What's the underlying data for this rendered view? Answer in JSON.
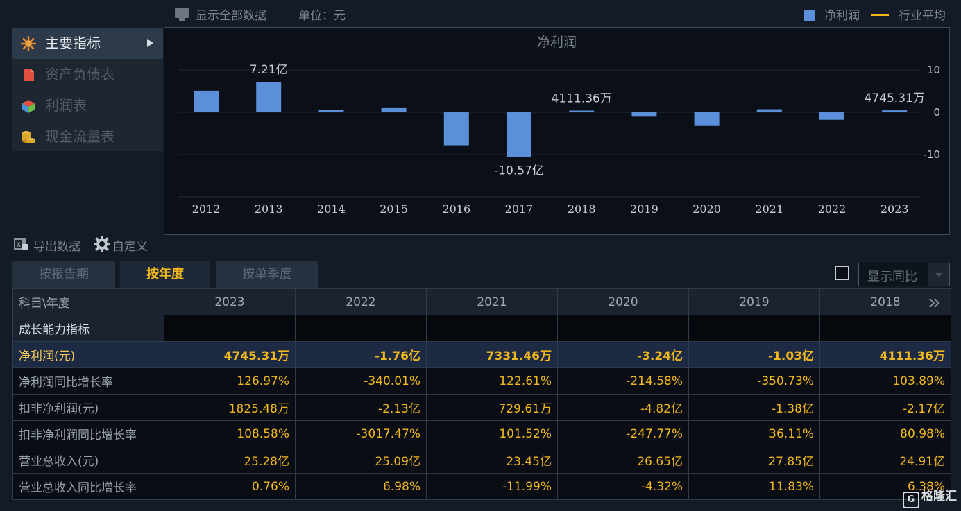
{
  "top": {
    "show_all": "显示全部数据",
    "unit": "单位：元",
    "legend_bar": "净利润",
    "legend_line": "行业平均"
  },
  "menu": {
    "items": [
      {
        "label": "主要指标",
        "icon": "star-icon"
      },
      {
        "label": "资产负债表",
        "icon": "document-icon"
      },
      {
        "label": "利润表",
        "icon": "cube-icon"
      },
      {
        "label": "现金流量表",
        "icon": "coins-icon"
      }
    ]
  },
  "chart_data": {
    "type": "bar",
    "title": "净利润",
    "categories": [
      "2012",
      "2013",
      "2014",
      "2015",
      "2016",
      "2017",
      "2018",
      "2019",
      "2020",
      "2021",
      "2022",
      "2023"
    ],
    "values": [
      5.1,
      7.21,
      0.6,
      1.0,
      -7.8,
      -10.57,
      0.4111,
      -1.03,
      -3.24,
      0.7331,
      -1.76,
      0.4745
    ],
    "ylim": [
      -20,
      10
    ],
    "yticks": [
      10,
      0,
      -10
    ],
    "labels": {
      "1": "7.21亿",
      "5": "-10.57亿",
      "6": "4111.36万",
      "11": "4745.31万"
    },
    "series": [
      {
        "name": "净利润"
      },
      {
        "name": "行业平均"
      }
    ],
    "color": "#5b8fd9",
    "line_color": "#f2b81a"
  },
  "tools": {
    "export": "导出数据",
    "custom": "自定义"
  },
  "tabs": [
    "按报告期",
    "按年度",
    "按单季度"
  ],
  "yoy_select": "显示同比",
  "table": {
    "corner": "科目\\年度",
    "years": [
      "2023",
      "2022",
      "2021",
      "2020",
      "2019",
      "2018"
    ],
    "section": "成长能力指标",
    "rows": [
      {
        "label": "净利润(元)",
        "values": [
          "4745.31万",
          "-1.76亿",
          "7331.46万",
          "-3.24亿",
          "-1.03亿",
          "4111.36万"
        ]
      },
      {
        "label": "净利润同比增长率",
        "values": [
          "126.97%",
          "-340.01%",
          "122.61%",
          "-214.58%",
          "-350.73%",
          "103.89%"
        ]
      },
      {
        "label": "扣非净利润(元)",
        "values": [
          "1825.48万",
          "-2.13亿",
          "729.61万",
          "-4.82亿",
          "-1.38亿",
          "-2.17亿"
        ]
      },
      {
        "label": "扣非净利润同比增长率",
        "values": [
          "108.58%",
          "-3017.47%",
          "101.52%",
          "-247.77%",
          "36.11%",
          "80.98%"
        ]
      },
      {
        "label": "营业总收入(元)",
        "values": [
          "25.28亿",
          "25.09亿",
          "23.45亿",
          "26.65亿",
          "27.85亿",
          "24.91亿"
        ]
      },
      {
        "label": "营业总收入同比增长率",
        "values": [
          "0.76%",
          "6.98%",
          "-11.99%",
          "-4.32%",
          "11.83%",
          "6.38%"
        ]
      }
    ]
  },
  "watermark": "格隆汇"
}
